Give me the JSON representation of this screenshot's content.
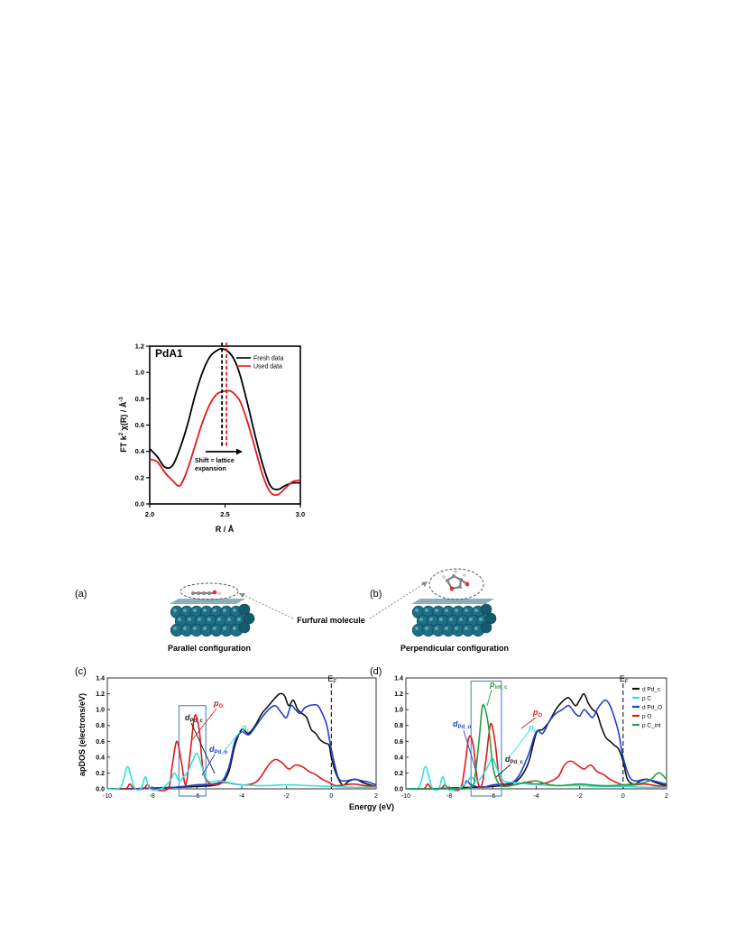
{
  "figure_top": {
    "panel_label": "PdA1",
    "annotation": {
      "line1": "Shift = lattice",
      "line2": "expansion"
    },
    "legend": [
      "Fresh data",
      "Used data"
    ],
    "colors": {
      "fresh": "#000000",
      "used": "#e31a1c"
    },
    "chart_data": {
      "type": "line",
      "xlabel": "R / Å",
      "ylabel_parts": {
        "a": "FT k",
        "sup1": "2",
        "b": " χ(R) / Å",
        "sup2": "-3"
      },
      "xlim": [
        2.0,
        3.0
      ],
      "ylim": [
        0.0,
        1.2
      ],
      "x_ticks": [
        "2.0",
        "2.5",
        "3.0"
      ],
      "x_tick_values": [
        2.0,
        2.5,
        3.0
      ],
      "y_ticks": [
        "0.0",
        "0.2",
        "0.4",
        "0.6",
        "0.8",
        "1.0",
        "1.2"
      ],
      "y_tick_values": [
        0.0,
        0.2,
        0.4,
        0.6,
        0.8,
        1.0,
        1.2
      ],
      "peak_markers": [
        2.48,
        2.51
      ],
      "series": [
        {
          "name": "Fresh data",
          "x": [
            2.0,
            2.05,
            2.1,
            2.15,
            2.2,
            2.25,
            2.3,
            2.35,
            2.4,
            2.45,
            2.48,
            2.52,
            2.56,
            2.6,
            2.65,
            2.7,
            2.75,
            2.8,
            2.85,
            2.9,
            2.95,
            3.0
          ],
          "y": [
            0.42,
            0.36,
            0.28,
            0.29,
            0.42,
            0.6,
            0.82,
            1.0,
            1.12,
            1.17,
            1.18,
            1.16,
            1.1,
            0.98,
            0.76,
            0.52,
            0.3,
            0.14,
            0.11,
            0.14,
            0.16,
            0.16
          ]
        },
        {
          "name": "Used data",
          "x": [
            2.0,
            2.05,
            2.1,
            2.15,
            2.2,
            2.25,
            2.3,
            2.35,
            2.4,
            2.45,
            2.51,
            2.55,
            2.6,
            2.65,
            2.7,
            2.75,
            2.8,
            2.85,
            2.9,
            2.95,
            3.0
          ],
          "y": [
            0.34,
            0.32,
            0.24,
            0.18,
            0.14,
            0.26,
            0.44,
            0.62,
            0.76,
            0.84,
            0.86,
            0.85,
            0.78,
            0.62,
            0.42,
            0.22,
            0.09,
            0.07,
            0.12,
            0.17,
            0.18
          ]
        }
      ]
    }
  },
  "figure_bottom": {
    "label_a": "(a)",
    "label_b": "(b)",
    "label_c": "(c)",
    "label_d": "(d)",
    "furfural_label": "Furfural molecule",
    "parallel_caption": "Parallel configuration",
    "perpendicular_caption": "Perpendicular configuration",
    "energy_label": "Energy (eV)",
    "ylabel": "apDOS (electrons/eV)",
    "ef_label_main": "E",
    "ef_label_sub": "F",
    "c_annotations": [
      {
        "main": "d",
        "sub": "Pd_c",
        "color": "#222222"
      },
      {
        "main": "p",
        "sub": "O",
        "color": "#e31a1c"
      },
      {
        "main": "p",
        "sub": "c",
        "color": "#2fe0e0"
      },
      {
        "main": "d",
        "sub": "Pd_o",
        "color": "#1f3fd1"
      }
    ],
    "d_annotations": [
      {
        "main": "p",
        "sub": "int_c",
        "color": "#22a040"
      },
      {
        "main": "p",
        "sub": "O",
        "color": "#e31a1c"
      },
      {
        "main": "d",
        "sub": "Pd_o",
        "color": "#1f3fd1"
      },
      {
        "main": "p",
        "sub": "c",
        "color": "#2fe0e0"
      },
      {
        "main": "d",
        "sub": "Pd_c",
        "color": "#222222"
      }
    ],
    "d_legend": [
      {
        "label": "d Pd_c",
        "color": "#111111"
      },
      {
        "label": "p C",
        "color": "#2fe0e0"
      },
      {
        "label": "d Pd_O",
        "color": "#1f3fd1"
      },
      {
        "label": "p O",
        "color": "#e31a1c"
      },
      {
        "label": "p C_int",
        "color": "#22a040"
      }
    ],
    "chart_data": [
      {
        "type": "line",
        "panel": "(c)",
        "xlim": [
          -10,
          2
        ],
        "ylim": [
          0.0,
          1.4
        ],
        "x_ticks": [
          "-10",
          "-8",
          "-6",
          "-4",
          "-2",
          "0",
          "2"
        ],
        "x_tick_values": [
          -10,
          -8,
          -6,
          -4,
          -2,
          0,
          2
        ],
        "y_ticks": [
          "0.0",
          "0.2",
          "0.4",
          "0.6",
          "0.8",
          "1.0",
          "1.2",
          "1.4"
        ],
        "y_tick_values": [
          0.0,
          0.2,
          0.4,
          0.6,
          0.8,
          1.0,
          1.2,
          1.4
        ],
        "highlight_box": {
          "x": [
            -6.8,
            -5.6
          ],
          "y": [
            0.0,
            1.05
          ]
        },
        "series": [
          {
            "key": "d_pd_c",
            "color": "#111111",
            "x": [
              -10,
              -9,
              -8,
              -7,
              -6,
              -5,
              -4.6,
              -4.3,
              -4.0,
              -3.7,
              -3.4,
              -3.1,
              -2.8,
              -2.5,
              -2.3,
              -2.1,
              -1.9,
              -1.7,
              -1.5,
              -1.3,
              -1.1,
              -0.9,
              -0.7,
              -0.5,
              -0.3,
              -0.1,
              0.0,
              0.2,
              0.5,
              0.8,
              1.1,
              1.4,
              1.7,
              2.0
            ],
            "y": [
              0.0,
              0.0,
              0.01,
              0.02,
              0.03,
              0.06,
              0.2,
              0.55,
              0.75,
              0.7,
              0.8,
              0.95,
              1.05,
              1.15,
              1.2,
              1.18,
              1.05,
              1.12,
              1.0,
              0.95,
              0.9,
              0.75,
              0.7,
              0.62,
              0.58,
              0.55,
              0.4,
              0.2,
              0.05,
              0.1,
              0.12,
              0.08,
              0.05,
              0.03
            ]
          },
          {
            "key": "d_pd_o",
            "color": "#1f3fd1",
            "x": [
              -10,
              -9,
              -8,
              -7,
              -6,
              -5,
              -4.6,
              -4.3,
              -4.0,
              -3.7,
              -3.4,
              -3.1,
              -2.8,
              -2.5,
              -2.2,
              -2.0,
              -1.8,
              -1.6,
              -1.4,
              -1.2,
              -1.0,
              -0.8,
              -0.6,
              -0.4,
              -0.2,
              0.0,
              0.3,
              0.6,
              1.0,
              1.4,
              1.7,
              2.0
            ],
            "y": [
              0.0,
              0.0,
              0.01,
              0.02,
              0.05,
              0.08,
              0.25,
              0.6,
              0.72,
              0.68,
              0.78,
              0.9,
              1.0,
              1.05,
              0.95,
              0.9,
              1.05,
              1.0,
              0.95,
              1.02,
              1.05,
              1.06,
              1.05,
              0.95,
              0.8,
              0.5,
              0.15,
              0.1,
              0.12,
              0.1,
              0.08,
              0.05
            ]
          },
          {
            "key": "p_o",
            "color": "#e31a1c",
            "x": [
              -10,
              -9.2,
              -9.0,
              -8.8,
              -8.4,
              -8.2,
              -8.0,
              -7.3,
              -7.1,
              -6.9,
              -6.7,
              -6.5,
              -6.3,
              -6.1,
              -5.9,
              -5.7,
              -5.3,
              -4.8,
              -4.3,
              -3.8,
              -3.3,
              -2.8,
              -2.5,
              -2.2,
              -1.9,
              -1.6,
              -1.3,
              -1.0,
              -0.7,
              -0.4,
              -0.1,
              0.2,
              0.6,
              1.0,
              1.5,
              2.0
            ],
            "y": [
              0.0,
              0.0,
              0.06,
              0.0,
              0.0,
              0.05,
              0.0,
              0.0,
              0.3,
              0.6,
              0.35,
              0.05,
              0.45,
              0.92,
              0.75,
              0.2,
              0.05,
              0.08,
              0.06,
              0.05,
              0.1,
              0.3,
              0.37,
              0.33,
              0.25,
              0.3,
              0.28,
              0.22,
              0.18,
              0.12,
              0.08,
              0.04,
              0.05,
              0.06,
              0.04,
              0.03
            ]
          },
          {
            "key": "p_c",
            "color": "#2fe0e0",
            "x": [
              -10,
              -9.4,
              -9.1,
              -8.8,
              -8.5,
              -8.3,
              -8.1,
              -7.6,
              -7.2,
              -7.0,
              -6.8,
              -6.6,
              -6.4,
              -6.2,
              -6.0,
              -5.8,
              -5.5,
              -5.0,
              -4.0,
              -3.0,
              -2.0,
              -1.0,
              0.0,
              1.0,
              2.0
            ],
            "y": [
              0.0,
              0.02,
              0.28,
              0.02,
              0.0,
              0.15,
              0.0,
              0.0,
              0.1,
              0.2,
              0.1,
              0.15,
              0.22,
              0.35,
              0.45,
              0.3,
              0.1,
              0.1,
              0.05,
              0.04,
              0.05,
              0.04,
              0.03,
              0.02,
              0.02
            ]
          }
        ]
      },
      {
        "type": "line",
        "panel": "(d)",
        "xlim": [
          -10,
          2
        ],
        "ylim": [
          0.0,
          1.4
        ],
        "x_ticks": [
          "-10",
          "-8",
          "-6",
          "-4",
          "-2",
          "0",
          "2"
        ],
        "x_tick_values": [
          -10,
          -8,
          -6,
          -4,
          -2,
          0,
          2
        ],
        "y_ticks": [
          "0.0",
          "0.2",
          "0.4",
          "0.6",
          "0.8",
          "1.0",
          "1.2",
          "1.4"
        ],
        "y_tick_values": [
          0.0,
          0.2,
          0.4,
          0.6,
          0.8,
          1.0,
          1.2,
          1.4
        ],
        "highlight_box": {
          "x": [
            -7.0,
            -5.6
          ],
          "y": [
            0.0,
            1.36
          ]
        },
        "series": [
          {
            "key": "d_pd_c",
            "color": "#111111",
            "x": [
              -10,
              -9,
              -8,
              -7,
              -6,
              -5,
              -4.4,
              -4.0,
              -3.7,
              -3.4,
              -3.1,
              -2.8,
              -2.5,
              -2.2,
              -2.0,
              -1.8,
              -1.6,
              -1.4,
              -1.2,
              -1.0,
              -0.8,
              -0.6,
              -0.4,
              -0.2,
              0.0,
              0.2,
              0.5,
              0.8,
              1.1,
              1.4,
              1.7,
              2.0
            ],
            "y": [
              0.0,
              0.0,
              0.01,
              0.02,
              0.03,
              0.08,
              0.3,
              0.7,
              0.75,
              0.85,
              1.0,
              1.1,
              1.15,
              1.05,
              1.12,
              1.2,
              1.08,
              1.0,
              0.95,
              0.78,
              0.65,
              0.6,
              0.55,
              0.5,
              0.35,
              0.12,
              0.06,
              0.1,
              0.12,
              0.09,
              0.06,
              0.04
            ]
          },
          {
            "key": "d_pd_o",
            "color": "#1f3fd1",
            "x": [
              -10,
              -9,
              -8,
              -7.4,
              -7.2,
              -7.0,
              -6.5,
              -6,
              -5,
              -4.4,
              -4.0,
              -3.7,
              -3.4,
              -3.1,
              -2.8,
              -2.5,
              -2.2,
              -2.0,
              -1.8,
              -1.6,
              -1.4,
              -1.2,
              -1.0,
              -0.8,
              -0.6,
              -0.4,
              -0.2,
              0.0,
              0.3,
              0.6,
              1.0,
              1.4,
              1.7,
              2.0
            ],
            "y": [
              0.0,
              0.0,
              0.01,
              0.02,
              0.1,
              0.05,
              0.02,
              0.05,
              0.1,
              0.4,
              0.72,
              0.7,
              0.85,
              0.95,
              1.0,
              1.05,
              0.95,
              0.92,
              1.0,
              0.95,
              0.9,
              1.0,
              1.08,
              1.12,
              1.05,
              0.9,
              0.7,
              0.4,
              0.15,
              0.1,
              0.12,
              0.1,
              0.08,
              0.06
            ]
          },
          {
            "key": "p_o",
            "color": "#e31a1c",
            "x": [
              -10,
              -9.2,
              -9.0,
              -8.8,
              -8.4,
              -8.2,
              -8.0,
              -7.5,
              -7.3,
              -7.1,
              -6.9,
              -6.7,
              -6.5,
              -6.3,
              -6.1,
              -5.9,
              -5.7,
              -5.4,
              -5.0,
              -4.5,
              -4.0,
              -3.5,
              -3.0,
              -2.7,
              -2.4,
              -2.1,
              -1.8,
              -1.5,
              -1.2,
              -0.9,
              -0.6,
              -0.3,
              0.0,
              0.5,
              1.0,
              1.5,
              2.0
            ],
            "y": [
              0.0,
              0.0,
              0.06,
              0.0,
              0.0,
              0.05,
              0.0,
              0.0,
              0.25,
              0.65,
              0.55,
              0.1,
              0.05,
              0.4,
              0.82,
              0.6,
              0.15,
              0.05,
              0.05,
              0.08,
              0.06,
              0.08,
              0.15,
              0.3,
              0.35,
              0.3,
              0.25,
              0.3,
              0.22,
              0.18,
              0.12,
              0.08,
              0.05,
              0.05,
              0.06,
              0.04,
              0.03
            ]
          },
          {
            "key": "p_c",
            "color": "#2fe0e0",
            "x": [
              -10,
              -9.4,
              -9.1,
              -8.8,
              -8.5,
              -8.3,
              -8.1,
              -7.6,
              -7.2,
              -7.0,
              -6.8,
              -6.6,
              -6.4,
              -6.2,
              -6.0,
              -5.8,
              -5.5,
              -5.0,
              -4.0,
              -3.0,
              -2.0,
              -1.0,
              0.0,
              1.0,
              2.0
            ],
            "y": [
              0.0,
              0.02,
              0.28,
              0.02,
              0.0,
              0.15,
              0.0,
              0.0,
              0.08,
              0.15,
              0.1,
              0.12,
              0.2,
              0.3,
              0.38,
              0.25,
              0.1,
              0.08,
              0.05,
              0.04,
              0.04,
              0.03,
              0.03,
              0.02,
              0.02
            ]
          },
          {
            "key": "p_c_int",
            "color": "#22a040",
            "x": [
              -10,
              -8,
              -7.0,
              -6.8,
              -6.6,
              -6.5,
              -6.4,
              -6.2,
              -6.0,
              -5.8,
              -5.5,
              -5.0,
              -4.5,
              -4.0,
              -3.5,
              -3.0,
              -2.5,
              -2.0,
              -1.5,
              -1.0,
              -0.5,
              0.0,
              0.5,
              1.0,
              1.3,
              1.5,
              1.7,
              2.0
            ],
            "y": [
              0.0,
              0.0,
              0.02,
              0.2,
              0.7,
              1.0,
              1.05,
              0.8,
              0.3,
              0.1,
              0.03,
              0.05,
              0.08,
              0.1,
              0.06,
              0.04,
              0.05,
              0.06,
              0.05,
              0.04,
              0.04,
              0.05,
              0.06,
              0.08,
              0.12,
              0.18,
              0.2,
              0.12
            ]
          }
        ]
      }
    ]
  }
}
